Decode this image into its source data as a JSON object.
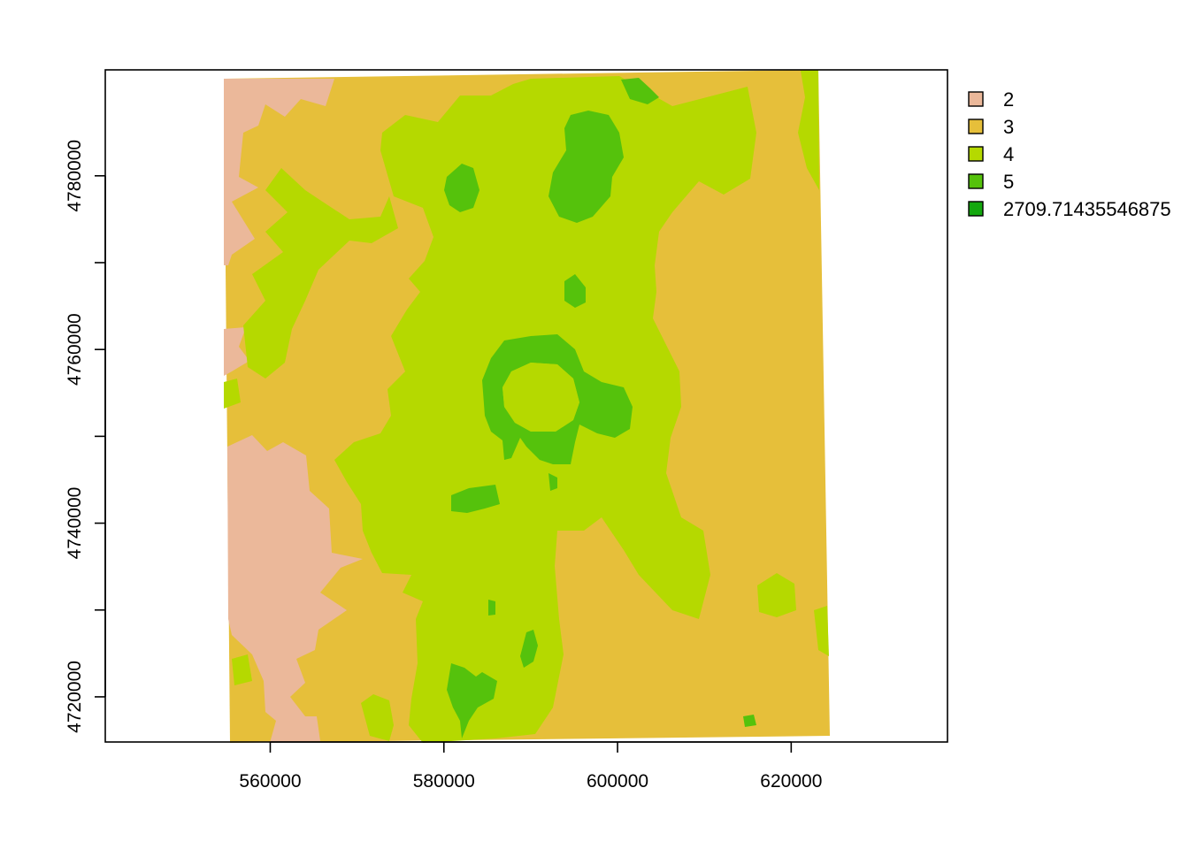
{
  "chart_data": {
    "type": "heatmap",
    "title": "",
    "xlabel": "",
    "ylabel": "",
    "xlim": [
      541000,
      638000
    ],
    "ylim": [
      4714800,
      4792200
    ],
    "x_ticks": [
      {
        "value": 560000,
        "label": "560000"
      },
      {
        "value": 580000,
        "label": "580000"
      },
      {
        "value": 600000,
        "label": "600000"
      },
      {
        "value": 620000,
        "label": "620000"
      }
    ],
    "y_ticks": [
      {
        "value": 4720000,
        "label": "4720000"
      },
      {
        "value": 4730000,
        "label": ""
      },
      {
        "value": 4740000,
        "label": "4740000"
      },
      {
        "value": 4750000,
        "label": ""
      },
      {
        "value": 4760000,
        "label": "4760000"
      },
      {
        "value": 4770000,
        "label": ""
      },
      {
        "value": 4780000,
        "label": "4780000"
      }
    ],
    "legend": {
      "placement": "right",
      "entries": [
        {
          "label": "2",
          "color": "#ebb89a"
        },
        {
          "label": "3",
          "color": "#e6bf3a"
        },
        {
          "label": "4",
          "color": "#b5d900"
        },
        {
          "label": "5",
          "color": "#55c20c"
        },
        {
          "label": "2709.71435546875",
          "color": "#13a80e"
        }
      ]
    }
  }
}
